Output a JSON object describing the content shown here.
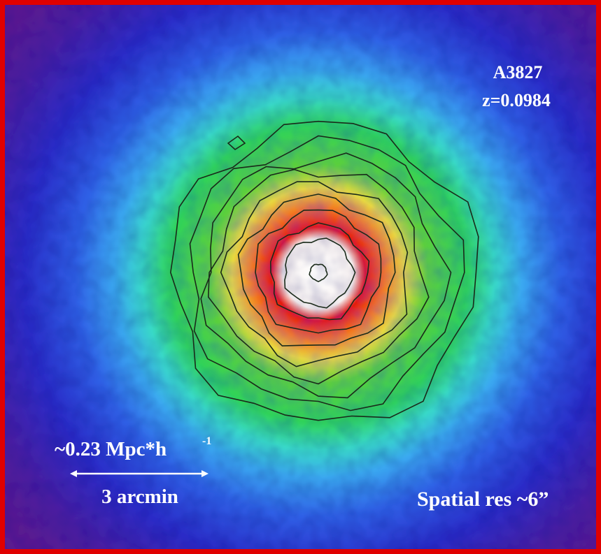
{
  "labels": {
    "name": "A3827",
    "redshift": "z=0.0984",
    "scale_physical": "~0.23 Mpc*h",
    "scale_physical_exponent": "-1",
    "scale_angular": "3 arcmin",
    "resolution": "Spatial res ~6”"
  }
}
